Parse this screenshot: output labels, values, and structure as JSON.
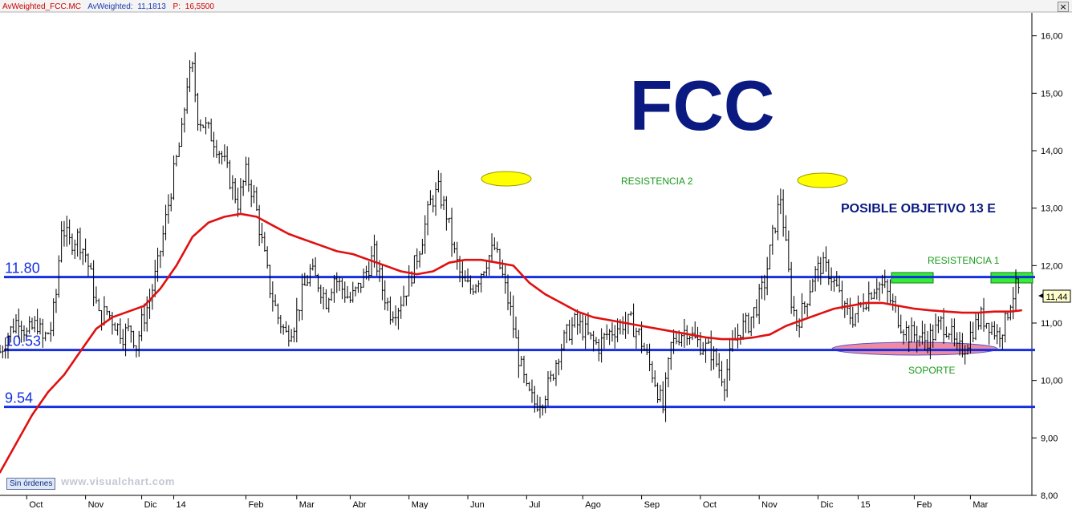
{
  "header": {
    "symbol_label": "AvWeighted_FCC.MC",
    "indicator_label": "AvWeighted:",
    "indicator_value": "11,1813",
    "price_label": "P:",
    "price_value": "16,5500",
    "close_glyph": "×"
  },
  "toolbar": {
    "orders_label": "Sin órdenes"
  },
  "watermark": "www.visualchart.com",
  "colors": {
    "background": "#ffffff",
    "price_bars": "#000000",
    "moving_average": "#e01010",
    "levels": "#1530e0",
    "title": "#0a1a80",
    "resistance_text": "#1a9a1a",
    "highlight_yellow": "#ffff00",
    "highlight_green": "#33ee33",
    "support_zone": "#f08aa0",
    "header_red": "#cc0000",
    "header_blue": "#1a3ab0"
  },
  "chart_data": {
    "type": "line",
    "title": "FCC",
    "xlabel": "",
    "ylabel": "",
    "ylim": [
      8.0,
      16.4
    ],
    "y_ticks": [
      8.0,
      9.0,
      10.0,
      11.0,
      12.0,
      13.0,
      14.0,
      15.0,
      16.0
    ],
    "y_tick_labels": [
      "8,00",
      "9,00",
      "10,00",
      "11,00",
      "12,00",
      "13,00",
      "14,00",
      "15,00",
      "16,00"
    ],
    "x_labels": [
      "Oct",
      "Nov",
      "Dic",
      "14",
      "Feb",
      "Mar",
      "Abr",
      "May",
      "Jun",
      "Jul",
      "Ago",
      "Sep",
      "Oct",
      "Nov",
      "Dic",
      "15",
      "Feb",
      "Mar"
    ],
    "x_positions": [
      0,
      22,
      43,
      55,
      82,
      101,
      121,
      143,
      165,
      187,
      208,
      230,
      252,
      274,
      296,
      311,
      332,
      353
    ],
    "x_range": [
      -10,
      376
    ],
    "grid": false,
    "last_price_label": "11,44",
    "series": [
      {
        "kind": "price-bars",
        "points": [
          [
            -10,
            10.5
          ],
          [
            -7,
            10.8
          ],
          [
            -3,
            11.1
          ],
          [
            0,
            10.8
          ],
          [
            4,
            11.0
          ],
          [
            6,
            10.7
          ],
          [
            9,
            10.9
          ],
          [
            11,
            11.5
          ],
          [
            13,
            12.7
          ],
          [
            16,
            12.4
          ],
          [
            19,
            12.5
          ],
          [
            22,
            12.2
          ],
          [
            24,
            11.8
          ],
          [
            27,
            11.1
          ],
          [
            30,
            11.2
          ],
          [
            33,
            11.0
          ],
          [
            36,
            10.8
          ],
          [
            39,
            10.9
          ],
          [
            41,
            10.6
          ],
          [
            43,
            11.0
          ],
          [
            46,
            11.4
          ],
          [
            49,
            12.0
          ],
          [
            52,
            12.8
          ],
          [
            55,
            13.6
          ],
          [
            58,
            14.3
          ],
          [
            60,
            15.2
          ],
          [
            62,
            15.4
          ],
          [
            64,
            14.6
          ],
          [
            67,
            14.4
          ],
          [
            70,
            14.2
          ],
          [
            73,
            13.9
          ],
          [
            76,
            13.5
          ],
          [
            79,
            13.1
          ],
          [
            82,
            13.6
          ],
          [
            85,
            13.2
          ],
          [
            88,
            12.4
          ],
          [
            91,
            11.6
          ],
          [
            94,
            11.1
          ],
          [
            97,
            10.8
          ],
          [
            100,
            11.0
          ],
          [
            103,
            11.5
          ],
          [
            106,
            11.9
          ],
          [
            109,
            11.7
          ],
          [
            112,
            11.4
          ],
          [
            115,
            11.8
          ],
          [
            118,
            11.6
          ],
          [
            121,
            11.4
          ],
          [
            124,
            11.6
          ],
          [
            127,
            11.9
          ],
          [
            130,
            12.2
          ],
          [
            133,
            11.6
          ],
          [
            136,
            11.2
          ],
          [
            139,
            11.3
          ],
          [
            142,
            11.6
          ],
          [
            145,
            12.0
          ],
          [
            148,
            12.5
          ],
          [
            151,
            13.1
          ],
          [
            154,
            13.3
          ],
          [
            157,
            12.9
          ],
          [
            160,
            12.2
          ],
          [
            163,
            11.7
          ],
          [
            166,
            11.6
          ],
          [
            169,
            11.8
          ],
          [
            172,
            12.1
          ],
          [
            175,
            12.3
          ],
          [
            178,
            11.8
          ],
          [
            181,
            11.2
          ],
          [
            184,
            10.4
          ],
          [
            187,
            9.8
          ],
          [
            190,
            9.6
          ],
          [
            193,
            9.7
          ],
          [
            196,
            10.0
          ],
          [
            199,
            10.5
          ],
          [
            202,
            10.8
          ],
          [
            205,
            11.0
          ],
          [
            208,
            10.9
          ],
          [
            211,
            10.7
          ],
          [
            214,
            10.6
          ],
          [
            217,
            10.8
          ],
          [
            220,
            10.9
          ],
          [
            223,
            11.0
          ],
          [
            226,
            11.0
          ],
          [
            229,
            10.8
          ],
          [
            232,
            10.4
          ],
          [
            235,
            10.0
          ],
          [
            238,
            9.5
          ],
          [
            241,
            10.6
          ],
          [
            244,
            10.8
          ],
          [
            247,
            10.9
          ],
          [
            250,
            10.7
          ],
          [
            253,
            10.6
          ],
          [
            256,
            10.5
          ],
          [
            259,
            10.2
          ],
          [
            261,
            10.0
          ],
          [
            264,
            10.6
          ],
          [
            267,
            10.9
          ],
          [
            270,
            11.0
          ],
          [
            273,
            11.3
          ],
          [
            276,
            11.7
          ],
          [
            279,
            12.5
          ],
          [
            282,
            13.2
          ],
          [
            284,
            12.3
          ],
          [
            286,
            11.4
          ],
          [
            288,
            11.0
          ],
          [
            291,
            11.3
          ],
          [
            294,
            11.8
          ],
          [
            297,
            12.0
          ],
          [
            300,
            11.9
          ],
          [
            303,
            11.6
          ],
          [
            306,
            11.2
          ],
          [
            309,
            11.1
          ],
          [
            312,
            11.3
          ],
          [
            315,
            11.5
          ],
          [
            318,
            11.7
          ],
          [
            321,
            11.6
          ],
          [
            324,
            11.3
          ],
          [
            327,
            11.0
          ],
          [
            330,
            10.8
          ],
          [
            333,
            10.8
          ],
          [
            336,
            10.7
          ],
          [
            339,
            10.8
          ],
          [
            342,
            11.0
          ],
          [
            345,
            10.9
          ],
          [
            348,
            10.5
          ],
          [
            351,
            10.6
          ],
          [
            354,
            10.9
          ],
          [
            357,
            11.1
          ],
          [
            360,
            11.0
          ],
          [
            363,
            10.8
          ],
          [
            366,
            11.0
          ],
          [
            368,
            11.4
          ],
          [
            370,
            11.6
          ],
          [
            372,
            11.5
          ]
        ]
      },
      {
        "kind": "moving-average",
        "points": [
          [
            -10,
            8.4
          ],
          [
            -4,
            8.9
          ],
          [
            2,
            9.4
          ],
          [
            8,
            9.8
          ],
          [
            14,
            10.1
          ],
          [
            20,
            10.5
          ],
          [
            26,
            10.9
          ],
          [
            32,
            11.1
          ],
          [
            38,
            11.2
          ],
          [
            44,
            11.3
          ],
          [
            50,
            11.6
          ],
          [
            56,
            12.0
          ],
          [
            62,
            12.5
          ],
          [
            68,
            12.75
          ],
          [
            74,
            12.85
          ],
          [
            80,
            12.9
          ],
          [
            86,
            12.85
          ],
          [
            92,
            12.7
          ],
          [
            98,
            12.55
          ],
          [
            104,
            12.45
          ],
          [
            110,
            12.35
          ],
          [
            116,
            12.25
          ],
          [
            122,
            12.2
          ],
          [
            128,
            12.1
          ],
          [
            134,
            12.0
          ],
          [
            140,
            11.9
          ],
          [
            146,
            11.85
          ],
          [
            152,
            11.9
          ],
          [
            158,
            12.05
          ],
          [
            164,
            12.1
          ],
          [
            170,
            12.1
          ],
          [
            176,
            12.05
          ],
          [
            182,
            12.0
          ],
          [
            188,
            11.7
          ],
          [
            194,
            11.5
          ],
          [
            200,
            11.35
          ],
          [
            206,
            11.2
          ],
          [
            212,
            11.1
          ],
          [
            218,
            11.05
          ],
          [
            224,
            11.0
          ],
          [
            230,
            10.95
          ],
          [
            236,
            10.9
          ],
          [
            242,
            10.85
          ],
          [
            248,
            10.8
          ],
          [
            254,
            10.75
          ],
          [
            260,
            10.72
          ],
          [
            266,
            10.72
          ],
          [
            272,
            10.75
          ],
          [
            278,
            10.8
          ],
          [
            284,
            10.95
          ],
          [
            290,
            11.05
          ],
          [
            296,
            11.15
          ],
          [
            302,
            11.25
          ],
          [
            308,
            11.3
          ],
          [
            314,
            11.35
          ],
          [
            320,
            11.35
          ],
          [
            326,
            11.3
          ],
          [
            332,
            11.25
          ],
          [
            338,
            11.22
          ],
          [
            344,
            11.2
          ],
          [
            350,
            11.18
          ],
          [
            356,
            11.18
          ],
          [
            362,
            11.2
          ],
          [
            368,
            11.2
          ],
          [
            372,
            11.22
          ]
        ]
      }
    ],
    "horizontal_levels": [
      {
        "value": 11.8,
        "label": "11.80"
      },
      {
        "value": 10.53,
        "label": "10.53"
      },
      {
        "value": 9.54,
        "label": "9.54"
      }
    ],
    "annotations": {
      "resistance_2": "RESISTENCIA 2",
      "resistance_1": "RESISTENCIA 1",
      "support": "SOPORTE",
      "target": "POSIBLE OBJETIVO 13 E"
    }
  }
}
